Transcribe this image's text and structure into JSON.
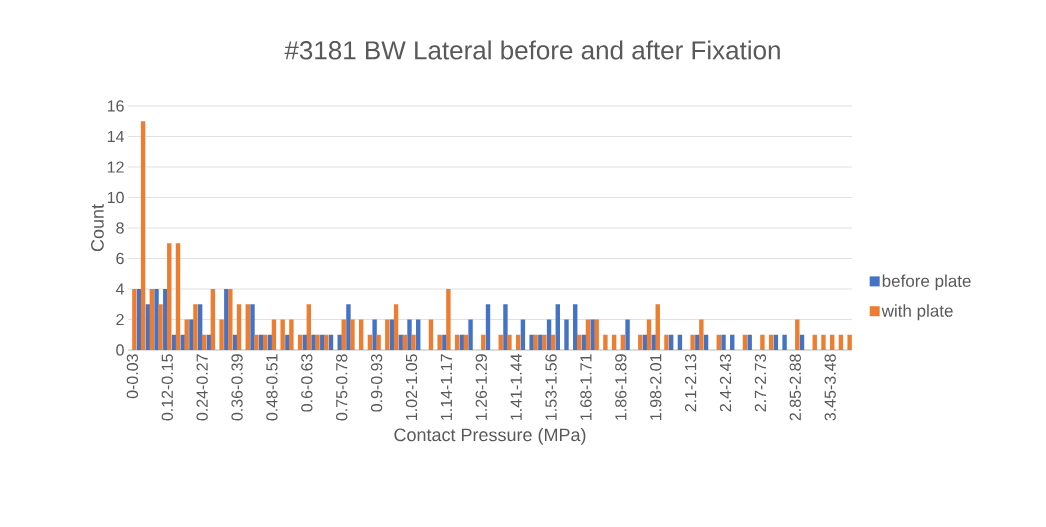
{
  "chart_data": {
    "type": "bar",
    "title": "#3181 BW Lateral before and after Fixation",
    "xlabel": "Contact Pressure (MPa)",
    "ylabel": "Count",
    "categories": [
      "0-0.03",
      null,
      null,
      null,
      "0.12-0.15",
      null,
      null,
      null,
      "0.24-0.27",
      null,
      null,
      null,
      "0.36-0.39",
      null,
      null,
      null,
      "0.48-0.51",
      null,
      null,
      null,
      "0.6-0.63",
      null,
      null,
      null,
      "0.75-0.78",
      null,
      null,
      null,
      "0.9-0.93",
      null,
      null,
      null,
      "1.02-1.05",
      null,
      null,
      null,
      "1.14-1.17",
      null,
      null,
      null,
      "1.26-1.29",
      null,
      null,
      null,
      "1.41-1.44",
      null,
      null,
      null,
      "1.53-1.56",
      null,
      null,
      null,
      "1.68-1.71",
      null,
      null,
      null,
      "1.86-1.89",
      null,
      null,
      null,
      "1.98-2.01",
      null,
      null,
      null,
      "2.1-2.13",
      null,
      null,
      null,
      "2.4-2.43",
      null,
      null,
      null,
      "2.7-2.73",
      null,
      null,
      null,
      "2.85-2.88",
      null,
      null,
      null,
      "3.45-3.48",
      null,
      null
    ],
    "series": [
      {
        "name": "before plate",
        "color": "#4472c4",
        "values": [
          0,
          4,
          3,
          4,
          4,
          1,
          1,
          2,
          3,
          1,
          0,
          4,
          1,
          0,
          3,
          1,
          1,
          0,
          1,
          0,
          1,
          1,
          1,
          1,
          1,
          3,
          0,
          0,
          2,
          0,
          2,
          1,
          2,
          2,
          0,
          0,
          1,
          0,
          1,
          2,
          0,
          3,
          0,
          3,
          0,
          2,
          1,
          1,
          2,
          3,
          2,
          3,
          1,
          2,
          0,
          0,
          0,
          2,
          0,
          1,
          1,
          0,
          1,
          1,
          0,
          1,
          1,
          0,
          1,
          1,
          0,
          1,
          0,
          0,
          1,
          1,
          0,
          1,
          0,
          0,
          0,
          0,
          0
        ]
      },
      {
        "name": "with plate",
        "color": "#ed7d31",
        "values": [
          4,
          15,
          4,
          3,
          7,
          7,
          2,
          3,
          1,
          4,
          2,
          4,
          3,
          3,
          1,
          1,
          2,
          2,
          2,
          1,
          3,
          1,
          1,
          0,
          2,
          2,
          2,
          1,
          1,
          2,
          3,
          1,
          1,
          0,
          2,
          1,
          4,
          1,
          1,
          0,
          1,
          0,
          1,
          1,
          1,
          0,
          1,
          1,
          1,
          0,
          0,
          1,
          2,
          2,
          1,
          1,
          1,
          0,
          1,
          2,
          3,
          1,
          0,
          0,
          1,
          2,
          0,
          1,
          0,
          0,
          1,
          0,
          1,
          1,
          0,
          0,
          2,
          0,
          1,
          1,
          1,
          1,
          1
        ]
      }
    ],
    "ylim": [
      0,
      16
    ],
    "yticks": [
      0,
      2,
      4,
      6,
      8,
      10,
      12,
      14,
      16
    ],
    "grid": "y",
    "legend": "right"
  }
}
